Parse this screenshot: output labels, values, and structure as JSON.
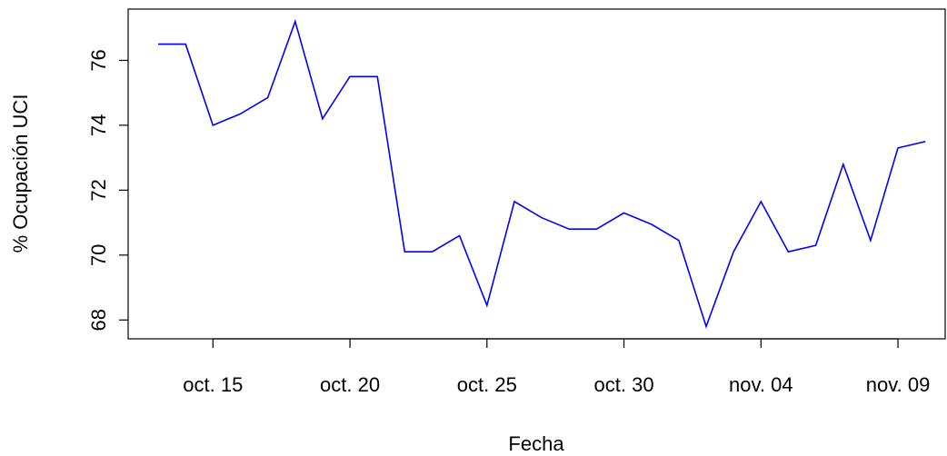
{
  "chart_data": {
    "type": "line",
    "x_label": "Fecha",
    "y_label": "% Ocupación UCI",
    "categories": [
      null,
      null,
      "oct. 15",
      null,
      null,
      null,
      null,
      "oct. 20",
      null,
      null,
      null,
      null,
      "oct. 25",
      null,
      null,
      null,
      null,
      "oct. 30",
      null,
      null,
      null,
      null,
      "nov. 04",
      null,
      null,
      null,
      null,
      "nov. 09",
      null
    ],
    "values": [
      76.5,
      76.5,
      74.0,
      74.35,
      74.85,
      77.2,
      74.2,
      75.5,
      75.5,
      70.1,
      70.1,
      70.6,
      68.45,
      71.65,
      71.15,
      70.8,
      70.8,
      71.3,
      70.95,
      70.45,
      67.8,
      70.1,
      71.65,
      70.1,
      70.3,
      72.8,
      70.45,
      73.3,
      73.5
    ],
    "color": "#0000ff",
    "ylim": [
      67.42,
      77.58
    ],
    "yticks": [
      68,
      70,
      72,
      74,
      76
    ]
  }
}
